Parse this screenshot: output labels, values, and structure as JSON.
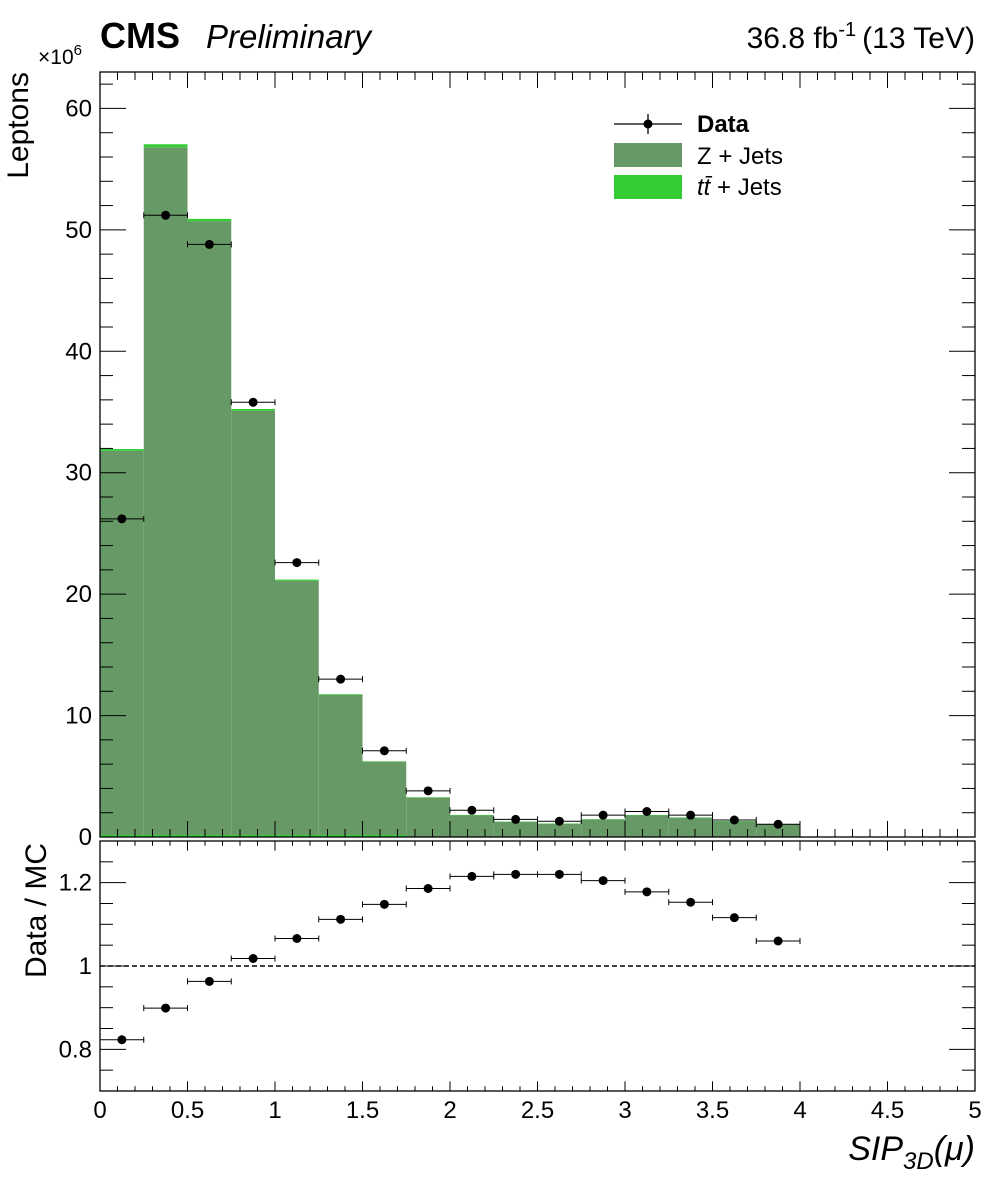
{
  "header": {
    "experiment": "CMS",
    "status": "Preliminary",
    "lumi_value": "36.8 fb",
    "lumi_exp": "-1",
    "energy": "(13 TeV)"
  },
  "chart_data": [
    {
      "type": "bar",
      "panel": "main",
      "stacked": true,
      "ylabel": "Leptons",
      "y_multiplier_base": "×10",
      "y_multiplier_exp": "6",
      "xlim": [
        0,
        5
      ],
      "ylim": [
        0,
        63
      ],
      "bin_edges": [
        0,
        0.25,
        0.5,
        0.75,
        1.0,
        1.25,
        1.5,
        1.75,
        2.0,
        2.25,
        2.5,
        2.75,
        3.0,
        3.25,
        3.5,
        3.75,
        4.0
      ],
      "x": [
        0.125,
        0.375,
        0.625,
        0.875,
        1.125,
        1.375,
        1.625,
        1.875,
        2.125,
        2.375,
        2.625,
        2.875,
        3.125,
        3.375,
        3.625,
        3.875
      ],
      "y_ticks": [
        "0",
        "10",
        "20",
        "30",
        "40",
        "50",
        "60"
      ],
      "series": [
        {
          "name": "Z + Jets",
          "type": "hist",
          "color": "#669966",
          "values": [
            31.8,
            56.8,
            50.7,
            35.1,
            21.1,
            11.7,
            6.2,
            3.25,
            1.8,
            1.25,
            1.1,
            1.45,
            1.8,
            1.6,
            1.3,
            1.05
          ]
        },
        {
          "name": "t̄t + Jets",
          "type": "hist",
          "color": "#33cc33",
          "values": [
            0.15,
            0.25,
            0.2,
            0.15,
            0.1,
            0.06,
            0.04,
            0.02,
            0.02,
            0.01,
            0.01,
            0.01,
            0.01,
            0.01,
            0.01,
            0.01
          ]
        },
        {
          "name": "Data",
          "type": "points",
          "color": "#000000",
          "values": [
            26.2,
            51.2,
            48.8,
            35.8,
            22.6,
            13.0,
            7.1,
            3.8,
            2.2,
            1.45,
            1.3,
            1.8,
            2.1,
            1.8,
            1.4,
            1.05
          ]
        }
      ],
      "legend": {
        "position": "top-right",
        "entries": [
          {
            "label": "Data",
            "style": "marker",
            "bold": true
          },
          {
            "label": "Z + Jets",
            "style": "fill",
            "color": "#669966"
          },
          {
            "label_main": "t",
            "label_bar": "t̄",
            "label_rest": " + Jets",
            "style": "fill",
            "color": "#33cc33"
          }
        ]
      }
    },
    {
      "type": "scatter",
      "panel": "ratio",
      "ylabel": "Data / MC",
      "xlabel_main": "SIP",
      "xlabel_sub": "3D",
      "xlabel_rest": "(μ)",
      "xlim": [
        0,
        5
      ],
      "ylim": [
        0.7,
        1.3
      ],
      "reference_line": 1.0,
      "x": [
        0.125,
        0.375,
        0.625,
        0.875,
        1.125,
        1.375,
        1.625,
        1.875,
        2.125,
        2.375,
        2.625,
        2.875,
        3.125,
        3.375,
        3.625,
        3.875
      ],
      "x_err": 0.125,
      "values": [
        0.823,
        0.899,
        0.963,
        1.018,
        1.066,
        1.112,
        1.148,
        1.186,
        1.215,
        1.22,
        1.22,
        1.205,
        1.178,
        1.153,
        1.116,
        1.06
      ],
      "x_ticks": [
        "0",
        "0.5",
        "1",
        "1.5",
        "2",
        "2.5",
        "3",
        "3.5",
        "4",
        "4.5",
        "5"
      ],
      "y_ticks": [
        "0.8",
        "1",
        "1.2"
      ]
    }
  ]
}
